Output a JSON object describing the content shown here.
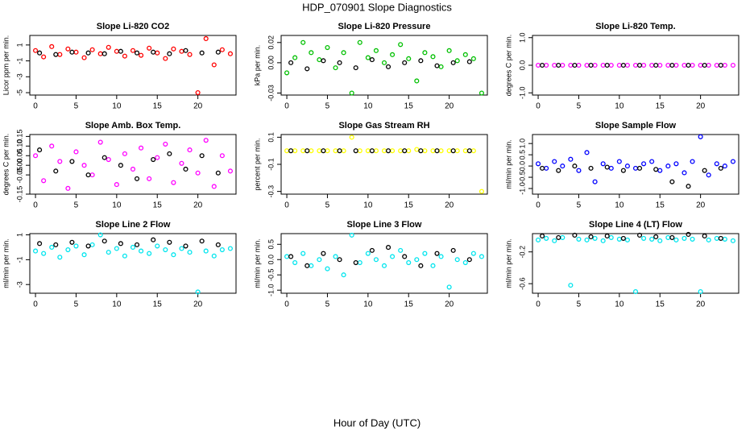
{
  "title": "HDP_070901  Slope Diagnostics",
  "xlabel": "Hour of Day (UTC)",
  "chart_data": [
    {
      "type": "scatter",
      "title": "Slope Li-820 CO2",
      "ylabel": "Licor ppm per min.",
      "xlim": [
        -0.7,
        24.7
      ],
      "xticks": [
        0,
        5,
        10,
        15,
        20
      ],
      "ylim": [
        -5.3,
        2.2
      ],
      "yticks": [
        1,
        -1,
        -3,
        -5
      ],
      "series": [
        {
          "color": "#ff0000",
          "x": [
            0,
            1,
            2,
            3,
            4,
            5,
            6,
            7,
            8,
            9,
            10,
            11,
            12,
            13,
            14,
            15,
            16,
            17,
            18,
            19,
            20,
            21,
            22,
            23,
            24
          ],
          "values": [
            0.3,
            -0.5,
            0.8,
            -0.2,
            0.5,
            0.1,
            -0.6,
            0.4,
            -0.1,
            0.7,
            0.2,
            -0.4,
            0.3,
            -0.3,
            0.6,
            0.0,
            -0.7,
            0.5,
            0.2,
            -0.2,
            -5.0,
            1.8,
            -1.5,
            0.4,
            -0.1
          ]
        },
        {
          "color": "#000000",
          "x": [
            0.5,
            2.5,
            4.5,
            6.5,
            8.5,
            10.5,
            12.5,
            14.5,
            16.5,
            18.5,
            20.5,
            22.5
          ],
          "values": [
            0,
            -0.2,
            0.1,
            0,
            -0.1,
            0.2,
            0,
            0.1,
            -0.1,
            0.3,
            0,
            0.1
          ]
        }
      ]
    },
    {
      "type": "scatter",
      "title": "Slope Li-820 Pressure",
      "ylabel": "kPa per min.",
      "xlim": [
        -0.7,
        24.7
      ],
      "xticks": [
        0,
        5,
        10,
        15,
        20
      ],
      "ylim": [
        -0.032,
        0.027
      ],
      "yticks": [
        0.02,
        {
          "value": 0,
          "label": "0.00"
        },
        -0.03
      ],
      "series": [
        {
          "color": "#00c000",
          "x": [
            0,
            1,
            2,
            3,
            4,
            5,
            6,
            7,
            8,
            9,
            10,
            11,
            12,
            13,
            14,
            15,
            16,
            17,
            18,
            19,
            20,
            21,
            22,
            23,
            24
          ],
          "values": [
            -0.01,
            0.005,
            0.02,
            0.01,
            0.003,
            0.015,
            -0.005,
            0.01,
            -0.03,
            0.02,
            0.005,
            0.012,
            0,
            0.008,
            0.018,
            0.004,
            -0.018,
            0.01,
            0.006,
            -0.004,
            0.012,
            0.002,
            0.008,
            0.004,
            -0.03
          ]
        },
        {
          "color": "#000000",
          "x": [
            0.5,
            2.5,
            4.5,
            6.5,
            8.5,
            10.5,
            12.5,
            14.5,
            16.5,
            18.5,
            20.5,
            22.5
          ],
          "values": [
            0,
            -0.006,
            0.002,
            0,
            -0.005,
            0.003,
            -0.004,
            0,
            0.002,
            -0.003,
            0,
            0.001
          ]
        }
      ]
    },
    {
      "type": "scatter",
      "title": "Slope Li-820 Temp.",
      "ylabel": "degrees C per min.",
      "xlim": [
        -0.7,
        24.7
      ],
      "xticks": [
        0,
        5,
        10,
        15,
        20
      ],
      "ylim": [
        -1.08,
        1.08
      ],
      "yticks": [
        {
          "value": 1,
          "label": "1.0"
        },
        {
          "value": 0,
          "label": "0.0"
        },
        {
          "value": -1,
          "label": "-1.0"
        }
      ],
      "series": [
        {
          "color": "#ff00ff",
          "x": [
            0,
            1,
            2,
            3,
            4,
            5,
            6,
            7,
            8,
            9,
            10,
            11,
            12,
            13,
            14,
            15,
            16,
            17,
            18,
            19,
            20,
            21,
            22,
            23,
            24
          ],
          "values": [
            0,
            0,
            0,
            0,
            0,
            0,
            0,
            0,
            0,
            0,
            0,
            0,
            0,
            0,
            0,
            0,
            0,
            0,
            0,
            0,
            0,
            0,
            0,
            0,
            0
          ]
        },
        {
          "color": "#000000",
          "x": [
            0.5,
            2.5,
            4.5,
            6.5,
            8.5,
            10.5,
            12.5,
            14.5,
            16.5,
            18.5,
            20.5,
            22.5
          ],
          "values": [
            0,
            0,
            0,
            0,
            0,
            0,
            0,
            0,
            0,
            0,
            0,
            0
          ]
        }
      ]
    },
    {
      "type": "scatter",
      "title": "Slope Amb. Box Temp.",
      "ylabel": "degrees C per min.",
      "xlim": [
        -0.7,
        24.7
      ],
      "xticks": [
        0,
        5,
        10,
        15,
        20
      ],
      "ylim": [
        -0.15,
        0.16
      ],
      "yticks": [
        0.15,
        {
          "value": 0.1,
          "label": "0.10"
        },
        0.05,
        {
          "value": 0,
          "label": "0.00"
        },
        -0.05,
        -0.15
      ],
      "series": [
        {
          "color": "#ff00ff",
          "x": [
            0,
            1,
            2,
            3,
            4,
            5,
            6,
            7,
            8,
            9,
            10,
            11,
            12,
            13,
            14,
            15,
            16,
            17,
            18,
            19,
            20,
            21,
            22,
            23,
            24
          ],
          "values": [
            0.05,
            -0.08,
            0.1,
            0.02,
            -0.12,
            0.07,
            0.0,
            -0.05,
            0.12,
            0.03,
            -0.1,
            0.06,
            -0.02,
            0.09,
            -0.07,
            0.04,
            0.11,
            -0.09,
            0.01,
            0.08,
            -0.04,
            0.13,
            -0.11,
            0.05,
            -0.03
          ]
        },
        {
          "color": "#000000",
          "x": [
            0.5,
            2.5,
            4.5,
            6.5,
            8.5,
            10.5,
            12.5,
            14.5,
            16.5,
            18.5,
            20.5,
            22.5
          ],
          "values": [
            0.08,
            -0.03,
            0.02,
            -0.05,
            0.04,
            0.0,
            -0.07,
            0.03,
            0.06,
            -0.02,
            0.05,
            -0.04
          ]
        }
      ]
    },
    {
      "type": "scatter",
      "title": "Slope Gas Stream RH",
      "ylabel": "percent per min.",
      "xlim": [
        -0.7,
        24.7
      ],
      "xticks": [
        0,
        5,
        10,
        15,
        20
      ],
      "ylim": [
        -0.32,
        0.12
      ],
      "yticks": [
        0.1,
        -0.1,
        -0.3
      ],
      "series": [
        {
          "color": "#ffff00",
          "x": [
            0,
            1,
            2,
            3,
            4,
            5,
            6,
            7,
            8,
            9,
            10,
            11,
            12,
            13,
            14,
            15,
            16,
            17,
            18,
            19,
            20,
            21,
            22,
            23,
            24
          ],
          "values": [
            0,
            0,
            0,
            0,
            0,
            0,
            0,
            0,
            0.1,
            0,
            0,
            0,
            0,
            0,
            0,
            0,
            0.01,
            0,
            0,
            0,
            0,
            0,
            0,
            0,
            -0.3
          ]
        },
        {
          "color": "#000000",
          "x": [
            0.5,
            2.5,
            4.5,
            6.5,
            8.5,
            10.5,
            12.5,
            14.5,
            16.5,
            18.5,
            20.5,
            22.5
          ],
          "values": [
            0,
            0,
            0,
            0,
            0,
            0,
            0,
            0,
            0,
            0,
            0,
            0
          ]
        }
      ]
    },
    {
      "type": "scatter",
      "title": "Slope Sample Flow",
      "ylabel": "ml/min per min.",
      "xlim": [
        -0.7,
        24.7
      ],
      "xticks": [
        0,
        5,
        10,
        15,
        20
      ],
      "ylim": [
        -1.25,
        1.4
      ],
      "yticks": [
        {
          "value": 1,
          "label": "1.0"
        },
        0.5,
        {
          "value": 0,
          "label": "0.0"
        },
        -0.5,
        {
          "value": -1,
          "label": "-1.0"
        }
      ],
      "series": [
        {
          "color": "#0000ff",
          "x": [
            0,
            1,
            2,
            3,
            4,
            5,
            6,
            7,
            8,
            9,
            10,
            11,
            12,
            13,
            14,
            15,
            16,
            17,
            18,
            19,
            20,
            21,
            22,
            23,
            24
          ],
          "values": [
            0.1,
            -0.1,
            0.2,
            0.0,
            0.3,
            -0.2,
            0.6,
            -0.7,
            0.1,
            -0.1,
            0.2,
            0.0,
            -0.1,
            0.1,
            0.2,
            -0.2,
            0.0,
            0.1,
            -0.3,
            0.2,
            1.3,
            -0.4,
            0.1,
            0.0,
            0.2
          ]
        },
        {
          "color": "#000000",
          "x": [
            0.5,
            2.5,
            4.5,
            6.5,
            8.5,
            10.5,
            12.5,
            14.5,
            16.5,
            18.5,
            20.5,
            22.5
          ],
          "values": [
            -0.1,
            -0.2,
            0,
            -0.1,
            -0.05,
            -0.2,
            -0.1,
            -0.15,
            -0.7,
            -0.9,
            -0.2,
            -0.1
          ]
        }
      ]
    },
    {
      "type": "scatter",
      "title": "Slope Line 2 Flow",
      "ylabel": "ml/min per min.",
      "xlim": [
        -0.7,
        24.7
      ],
      "xticks": [
        0,
        5,
        10,
        15,
        20
      ],
      "ylim": [
        -3.7,
        1.1
      ],
      "yticks": [
        1,
        -1,
        -3
      ],
      "series": [
        {
          "color": "#00e5ee",
          "x": [
            0,
            1,
            2,
            3,
            4,
            5,
            6,
            7,
            8,
            9,
            10,
            11,
            12,
            13,
            14,
            15,
            16,
            17,
            18,
            19,
            20,
            21,
            22,
            23,
            24
          ],
          "values": [
            -0.3,
            -0.5,
            0.0,
            -0.8,
            -0.2,
            0.1,
            -0.6,
            0.2,
            1.0,
            -0.4,
            -0.1,
            -0.7,
            0.0,
            -0.3,
            -0.5,
            0.1,
            -0.2,
            -0.6,
            -0.1,
            -0.4,
            -3.6,
            -0.3,
            -0.7,
            -0.2,
            -0.1
          ]
        },
        {
          "color": "#000000",
          "x": [
            0.5,
            2.5,
            4.5,
            6.5,
            8.5,
            10.5,
            12.5,
            14.5,
            16.5,
            18.5,
            20.5,
            22.5
          ],
          "values": [
            0.3,
            0.2,
            0.4,
            0.1,
            0.5,
            0.3,
            0.2,
            0.6,
            0.4,
            0.1,
            0.5,
            0.2
          ]
        }
      ]
    },
    {
      "type": "scatter",
      "title": "Slope Line 3 Flow",
      "ylabel": "ml/min per min.",
      "xlim": [
        -0.7,
        24.7
      ],
      "xticks": [
        0,
        5,
        10,
        15,
        20
      ],
      "ylim": [
        -1.1,
        0.85
      ],
      "yticks": [
        0.5,
        {
          "value": 0,
          "label": "0.0"
        },
        -0.5,
        {
          "value": -1,
          "label": "-1.0"
        }
      ],
      "series": [
        {
          "color": "#00e5ee",
          "x": [
            0,
            1,
            2,
            3,
            4,
            5,
            6,
            7,
            8,
            9,
            10,
            11,
            12,
            13,
            14,
            15,
            16,
            17,
            18,
            19,
            20,
            21,
            22,
            23,
            24
          ],
          "values": [
            0.1,
            -0.1,
            0.2,
            -0.2,
            0.0,
            -0.3,
            0.1,
            -0.5,
            0.8,
            -0.1,
            0.2,
            0.0,
            -0.2,
            0.1,
            0.3,
            -0.1,
            0.0,
            0.2,
            -0.2,
            0.1,
            -0.9,
            0.0,
            -0.1,
            0.2,
            0.1
          ]
        },
        {
          "color": "#000000",
          "x": [
            0.5,
            2.5,
            4.5,
            6.5,
            8.5,
            10.5,
            12.5,
            14.5,
            16.5,
            18.5,
            20.5,
            22.5
          ],
          "values": [
            0.1,
            -0.2,
            0.2,
            0.0,
            -0.1,
            0.3,
            0.4,
            0.1,
            -0.2,
            0.2,
            0.3,
            0.0
          ]
        }
      ]
    },
    {
      "type": "scatter",
      "title": "Slope Line 4 (LT) Flow",
      "ylabel": "ml/min per min.",
      "xlim": [
        -0.7,
        24.7
      ],
      "xticks": [
        0,
        5,
        10,
        15,
        20
      ],
      "ylim": [
        -0.72,
        0.03
      ],
      "yticks": [
        -0.2,
        -0.6
      ],
      "series": [
        {
          "color": "#00e5ee",
          "x": [
            0,
            1,
            2,
            3,
            4,
            5,
            6,
            7,
            8,
            9,
            10,
            11,
            12,
            13,
            14,
            15,
            16,
            17,
            18,
            19,
            20,
            21,
            22,
            23,
            24
          ],
          "values": [
            -0.05,
            -0.03,
            -0.06,
            -0.02,
            -0.62,
            -0.04,
            -0.05,
            -0.03,
            -0.06,
            -0.02,
            -0.04,
            -0.05,
            -0.7,
            -0.03,
            -0.04,
            -0.06,
            -0.02,
            -0.05,
            -0.03,
            -0.04,
            -0.7,
            -0.05,
            -0.03,
            -0.04,
            -0.06
          ]
        },
        {
          "color": "#000000",
          "x": [
            0.5,
            2.5,
            4.5,
            6.5,
            8.5,
            10.5,
            12.5,
            14.5,
            16.5,
            18.5,
            20.5,
            22.5
          ],
          "values": [
            0.0,
            -0.02,
            0.01,
            -0.01,
            0.0,
            -0.03,
            0.01,
            -0.01,
            -0.02,
            0.02,
            0.0,
            -0.03
          ]
        }
      ]
    }
  ]
}
